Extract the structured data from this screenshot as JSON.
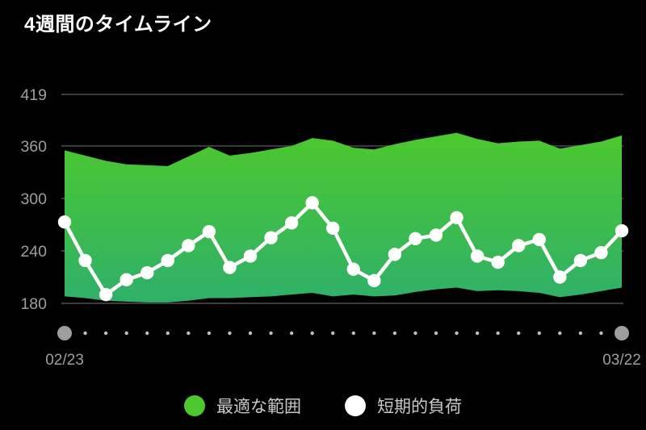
{
  "title": "4週間のタイムライン",
  "chart_data": {
    "type": "area",
    "title": "4週間のタイムライン",
    "y_ticks": [
      419,
      360,
      300,
      240,
      180
    ],
    "ylim": [
      160,
      430
    ],
    "x_start_label": "02/23",
    "x_end_label": "03/22",
    "n_points": 28,
    "grid": true,
    "legend_position": "bottom-center",
    "series": [
      {
        "name": "最適な範囲",
        "type": "band",
        "color_top": "#4cc82e",
        "color_bottom": "#2fb069",
        "upper": [
          355,
          349,
          343,
          339,
          338,
          337,
          348,
          359,
          349,
          352,
          356,
          360,
          369,
          366,
          358,
          356,
          362,
          367,
          371,
          375,
          368,
          363,
          365,
          366,
          357,
          361,
          365,
          372
        ],
        "lower": [
          188,
          186,
          183,
          182,
          181,
          181,
          183,
          186,
          186,
          187,
          188,
          190,
          192,
          188,
          190,
          188,
          189,
          193,
          196,
          198,
          194,
          195,
          194,
          192,
          187,
          190,
          194,
          198
        ]
      },
      {
        "name": "短期的負荷",
        "type": "line",
        "color": "#ffffff",
        "values": [
          273,
          229,
          190,
          207,
          215,
          229,
          246,
          262,
          221,
          234,
          255,
          272,
          295,
          266,
          219,
          206,
          236,
          254,
          258,
          278,
          234,
          227,
          246,
          253,
          210,
          229,
          238,
          263
        ]
      }
    ],
    "legend": [
      {
        "label": "最適な範囲",
        "color": "#4cc82e"
      },
      {
        "label": "短期的負荷",
        "color": "#ffffff"
      }
    ]
  },
  "colors": {
    "background": "#000000",
    "title": "#ffffff",
    "axis_label": "#9e9e9e",
    "gridline": "#3c3c3c",
    "timeline_endpoint_dot": "#9e9e9e",
    "timeline_small_dot": "#c0c0c0",
    "legend_text": "#c9c9c9"
  }
}
